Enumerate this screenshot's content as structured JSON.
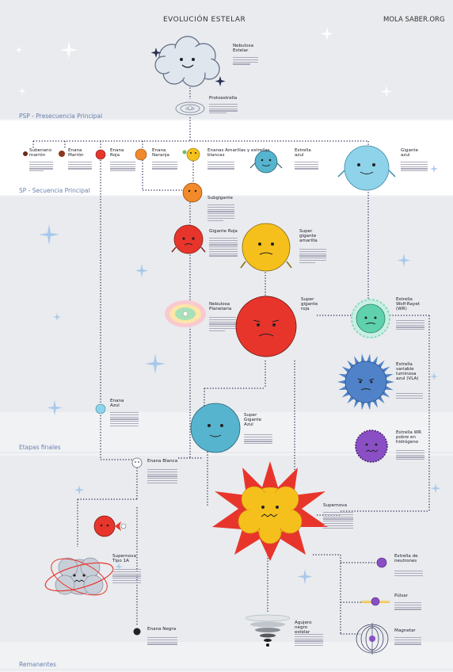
{
  "header": {
    "title": "EVOLUCIÓN ESTELAR",
    "brand": "MOLA SABER.ORG"
  },
  "sections": {
    "psp": "PSP - Presecuencia Principal",
    "sp": "SP - Secuencia Principal",
    "finales": "Etapas finales",
    "remanentes": "Remanentes"
  },
  "objects": {
    "nebulosa_estelar": "Nebulosa Estelar",
    "protoestrella": "Protoestrella",
    "subenano_marron": "Subenano marrón",
    "enana_marron": "Enana Marrón",
    "enana_roja": "Enana Roja",
    "enana_naranja": "Enana Naranja",
    "enanas_amarillas": "Enanas Amarillas y estrellas blancas",
    "estrella_azul": "Estrella azul",
    "gigante_azul": "Gigante azul",
    "subgigante": "Subgigante",
    "gigante_roja": "Gigante Roja",
    "super_gigante_amarilla": "Super gigante amarilla",
    "nebulosa_planetaria": "Nebulosa Planetaria",
    "super_gigante_roja": "Super gigante roja",
    "wolf_rayet": "Estrella Wolf-Rayet (WR)",
    "variable_luminosa": "Estrella variable luminosa azul (VLA)",
    "wr_pobre": "Estrella WR pobre en hidrógeno",
    "enana_azul": "Enana Azul",
    "super_gigante_azul": "Super Gigante Azul",
    "enana_blanca": "Enana Blanca",
    "supernova": "Supernova",
    "supernova_ia": "Supernova Tipo 1A",
    "estrella_neutrones": "Estrella de neutrones",
    "pulsar": "Púlsar",
    "agujero_negro": "Agujero negro estelar",
    "enana_negra": "Enana Negra",
    "magnetar": "Magnetar"
  },
  "colors": {
    "background": "#e9ebee",
    "band_white": "#ffffff",
    "band_light": "#f4f5f7",
    "section_label": "#6a7fb0",
    "dotted_line": "#2b2f55",
    "red": "#e8352c",
    "orange": "#f08a2a",
    "yellow": "#f5c01c",
    "blue": "#56b4cf",
    "light_blue": "#8fd3ea",
    "teal": "#5fd1ad",
    "royal_blue": "#4f82c8",
    "purple": "#8a4fc4"
  },
  "icons": {
    "cloud": "nebula-cloud-icon",
    "disk": "protostar-disk-icon",
    "sparkle": "sparkle-star-icon",
    "explosion": "supernova-explosion-icon",
    "vortex": "black-hole-vortex-icon",
    "magnet": "magnetar-field-icon"
  }
}
